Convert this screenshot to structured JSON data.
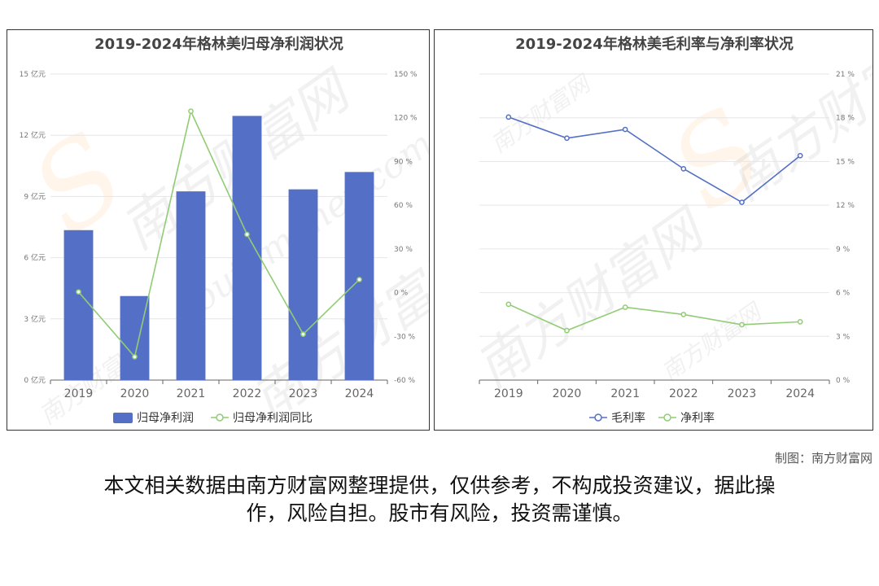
{
  "watermark": {
    "cn": "南方财富网",
    "en": "southmoney.com"
  },
  "credit": "制图：南方财富网",
  "disclaimer_lines": [
    "本文相关数据由南方财富网整理提供，仅供参考，不构成投资建议，据此操",
    "作，风险自担。股市有风险，投资需谨慎。"
  ],
  "chart_data": [
    {
      "type": "bar",
      "title": "2019-2024年格林美归母净利润状况",
      "categories": [
        "2019",
        "2020",
        "2021",
        "2022",
        "2023",
        "2024"
      ],
      "y_ticks": [
        "0 亿元",
        "3 亿元",
        "6 亿元",
        "9 亿元",
        "12 亿元",
        "15 亿元"
      ],
      "y2_ticks": [
        "-60 %",
        "-30 %",
        "0 %",
        "30 %",
        "60 %",
        "90 %",
        "120 %",
        "150 %"
      ],
      "ylim": [
        0,
        15
      ],
      "y2lim": [
        -60,
        150
      ],
      "series": [
        {
          "name": "归母净利润",
          "kind": "bar",
          "axis": "left",
          "color": "#5470c6",
          "values": [
            7.35,
            4.12,
            9.25,
            12.95,
            9.35,
            10.2
          ]
        },
        {
          "name": "归母净利润同比",
          "kind": "line",
          "axis": "right",
          "color": "#91cc75",
          "values": [
            0.5,
            -44.0,
            124.5,
            40.0,
            -28.5,
            9.0
          ]
        }
      ],
      "legend": "bottom",
      "grid": true
    },
    {
      "type": "line",
      "title": "2019-2024年格林美毛利率与净利率状况",
      "categories": [
        "2019",
        "2020",
        "2021",
        "2022",
        "2023",
        "2024"
      ],
      "y_ticks": [
        "0 %",
        "3 %",
        "6 %",
        "9 %",
        "12 %",
        "15 %",
        "18 %",
        "21 %"
      ],
      "ylim": [
        0,
        21
      ],
      "series": [
        {
          "name": "毛利率",
          "color": "#5470c6",
          "values": [
            18.05,
            16.6,
            17.2,
            14.5,
            12.2,
            15.4
          ]
        },
        {
          "name": "净利率",
          "color": "#91cc75",
          "values": [
            5.2,
            3.4,
            5.0,
            4.5,
            3.8,
            4.0
          ]
        }
      ],
      "legend": "bottom",
      "grid": true
    }
  ]
}
